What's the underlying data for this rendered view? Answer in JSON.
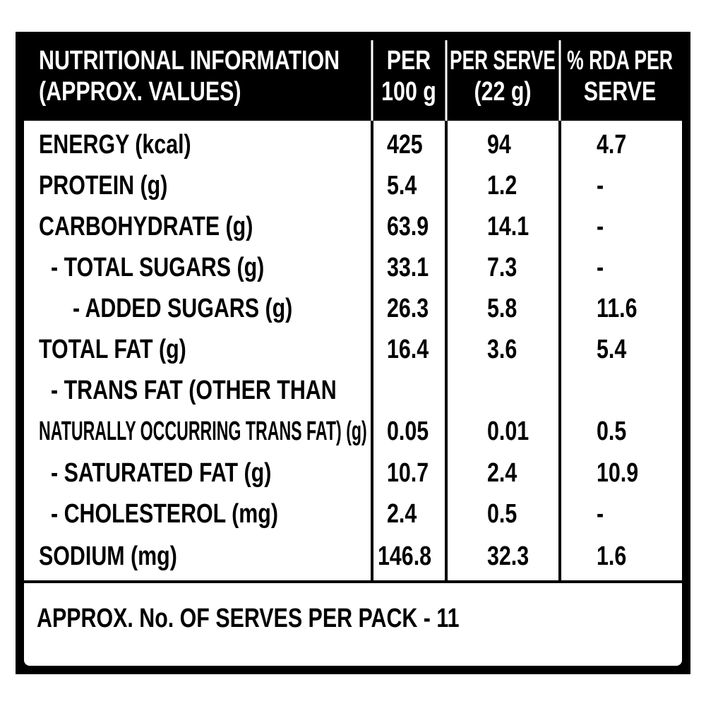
{
  "header": {
    "title": [
      "NUTRITIONAL INFORMATION",
      "(APPROX. VALUES)"
    ],
    "columns": [
      [
        "PER",
        "100 g"
      ],
      [
        "PER SERVE",
        "(22 g)"
      ],
      [
        "% RDA PER",
        "SERVE"
      ]
    ]
  },
  "table": {
    "rows": [
      {
        "label": [
          "ENERGY (kcal)"
        ],
        "values": [
          "425",
          "94",
          "4.7"
        ]
      },
      {
        "label": [
          "PROTEIN (g)"
        ],
        "values": [
          "5.4",
          "1.2",
          "-"
        ]
      },
      {
        "label": [
          "CARBOHYDRATE (g)"
        ],
        "values": [
          "63.9",
          "14.1",
          "-"
        ]
      },
      {
        "label": [
          "- TOTAL SUGARS (g)"
        ],
        "values": [
          "33.1",
          "7.3",
          "-"
        ]
      },
      {
        "label": [
          "- ADDED SUGARS (g)"
        ],
        "values": [
          "26.3",
          "5.8",
          "11.6"
        ]
      },
      {
        "label": [
          "TOTAL FAT (g)"
        ],
        "values": [
          "16.4",
          "3.6",
          "5.4"
        ]
      },
      {
        "label": [
          "- TRANS FAT (OTHER THAN",
          "NATURALLY OCCURRING TRANS FAT) (g)"
        ],
        "values": [
          "0.05",
          "0.01",
          "0.5"
        ]
      },
      {
        "label": [
          "- SATURATED FAT (g)"
        ],
        "values": [
          "10.7",
          "2.4",
          "10.9"
        ]
      },
      {
        "label": [
          "- CHOLESTEROL (mg)"
        ],
        "values": [
          "2.4",
          "0.5",
          "-"
        ]
      },
      {
        "label": [
          "SODIUM (mg)"
        ],
        "values": [
          "146.8",
          "32.3",
          "1.6"
        ]
      }
    ]
  },
  "footer": {
    "text": "APPROX. No. OF SERVES PER PACK - 11"
  }
}
